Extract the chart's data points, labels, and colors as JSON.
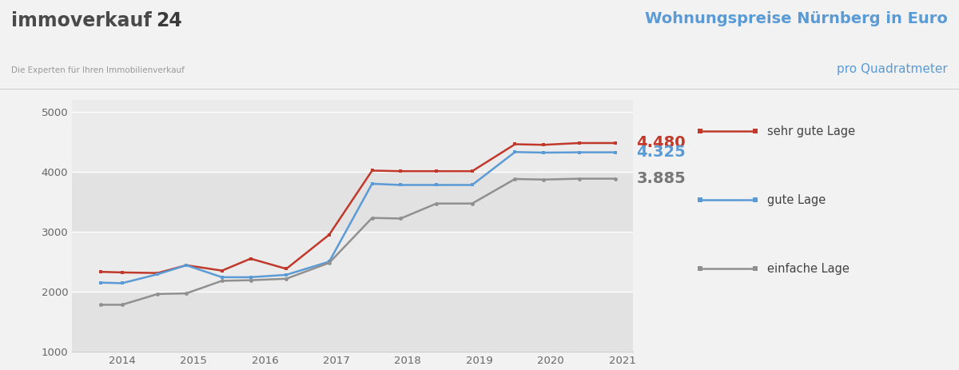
{
  "years": [
    2013.7,
    2014.0,
    2014.5,
    2014.9,
    2015.4,
    2015.8,
    2016.3,
    2016.9,
    2017.5,
    2017.9,
    2018.4,
    2018.9,
    2019.5,
    2019.9,
    2020.4,
    2020.9
  ],
  "sehr_gute_lage": [
    2330,
    2320,
    2310,
    2440,
    2350,
    2550,
    2380,
    2950,
    4020,
    4010,
    4010,
    4010,
    4460,
    4450,
    4480,
    4480
  ],
  "gute_lage": [
    2150,
    2140,
    2290,
    2440,
    2240,
    2240,
    2280,
    2500,
    3800,
    3780,
    3780,
    3780,
    4330,
    4320,
    4325,
    4325
  ],
  "einfache_lage": [
    1780,
    1780,
    1960,
    1970,
    2180,
    2190,
    2215,
    2480,
    3230,
    3220,
    3470,
    3470,
    3880,
    3870,
    3885,
    3885
  ],
  "x_ticks": [
    2014,
    2015,
    2016,
    2017,
    2018,
    2019,
    2020,
    2021
  ],
  "xlim_left": 2013.3,
  "xlim_right": 2021.15,
  "ylim": [
    1000,
    5200
  ],
  "y_ticks": [
    1000,
    2000,
    3000,
    4000,
    5000
  ],
  "color_sehr_gut": "#c0392b",
  "color_gut": "#5b9bd5",
  "color_einfach": "#909090",
  "bg_color": "#f2f2f2",
  "band_colors": [
    "#e2e2e2",
    "#ebebeb",
    "#e2e2e2",
    "#ebebeb"
  ],
  "band_ranges": [
    [
      1000,
      2000
    ],
    [
      2000,
      3000
    ],
    [
      3000,
      4000
    ],
    [
      4000,
      5200
    ]
  ],
  "label_sehr_gut": "sehr gute Lage",
  "label_gut": "gute Lage",
  "label_einfach": "einfache Lage",
  "value_sehr_gut": "4.480",
  "value_gut": "4.325",
  "value_einfach": "3.885",
  "title_line1": "Wohnungspreise Nürnberg in Euro",
  "title_line2": "pro Quadratmeter",
  "logo_text_immo": "immoverkauf",
  "logo_text_24": "24",
  "logo_subtitle": "Die Experten für Ihren Immobilienverkauf",
  "logo_color_immo": "#4a4a4a",
  "logo_color_24": "#3a3a3a",
  "logo_subtitle_color": "#999999",
  "title_color": "#5b9bd5",
  "legend_line_color_sg": "#c0392b",
  "legend_line_color_gg": "#5b9bd5",
  "legend_line_color_eg": "#909090",
  "tick_color": "#666666",
  "spine_color": "#cccccc"
}
